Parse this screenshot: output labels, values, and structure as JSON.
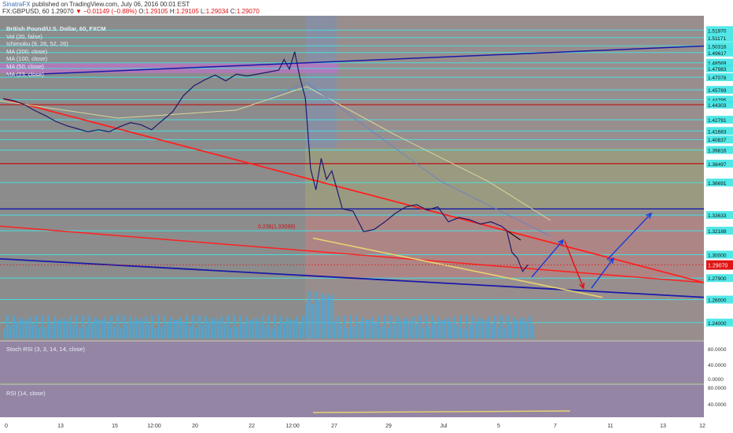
{
  "header": {
    "user": "SinatraFX",
    "published_text": "published on TradingView.com, July 06, 2016 00:01 EST",
    "symbol": "FX:GBPUSD, 60",
    "price": "1.29070",
    "change": "▼ −0.01149 (−0.88%)",
    "o_label": "O:",
    "o": "1.29105",
    "h_label": "H:",
    "h": "1.29105",
    "l_label": "L:",
    "l": "1.29034",
    "c_label": "C:",
    "c": "1.29070"
  },
  "legend": {
    "title": "British Pound/U.S. Dollar, 60, FXCM",
    "items": [
      "Vol (20, false)",
      "Ichimoku (9, 26, 52, 26)",
      "MA (200, close)",
      "MA (100, close)",
      "MA (50, close)",
      "MA (23, close)"
    ]
  },
  "panels": {
    "stoch_label": "Stoch RSI (3, 3, 14, 14, close)",
    "rsi_label": "RSI (14, close)"
  },
  "colors": {
    "background": "#8c8c8c",
    "axis_bg": "#ffffff",
    "trend_red": "#ff2020",
    "trend_blue": "#1a1aa8",
    "support_yellow": "#e8d470",
    "level_cyan": "#3fe6e6",
    "arrow_blue": "#1a3fd8",
    "arrow_red": "#e01515",
    "price_tag": "#e01515"
  },
  "chart_data": {
    "type": "line",
    "title": "British Pound/U.S. Dollar, 60, FXCM",
    "xlabel": "",
    "ylabel": "",
    "x_ticks": [
      "0",
      "13",
      "15",
      "12:00",
      "20",
      "22",
      "12:00",
      "27",
      "29",
      "Jul",
      "5",
      "7",
      "11",
      "13",
      "12"
    ],
    "y_ticks": [
      1.24,
      1.26,
      1.279,
      1.3,
      1.3218,
      1.3363,
      1.3669,
      1.3849,
      1.3981,
      1.4083,
      1.4168,
      1.4279,
      1.443,
      1.4479,
      1.4579,
      1.4707,
      1.4798,
      1.4856,
      1.4962,
      1.5032,
      1.5117,
      1.5197
    ],
    "axis_labels": [
      "1.51970",
      "1.51171",
      "1.50318",
      "1.49617",
      "1.48569",
      "1.47983",
      "1.47078",
      "1.45789",
      "1.44795",
      "1.44303",
      "1.42791",
      "1.41683",
      "1.40837",
      "1.39816",
      "1.38497",
      "1.36691",
      "1.33633",
      "1.32188",
      "1.30000",
      "1.27900",
      "1.26000",
      "1.24000"
    ],
    "last_price": "1.29070",
    "ylim": [
      1.225,
      1.535
    ],
    "price_series": [
      {
        "x": 0,
        "y": 1.449
      },
      {
        "x": 4,
        "y": 1.447
      },
      {
        "x": 8,
        "y": 1.443
      },
      {
        "x": 12,
        "y": 1.437
      },
      {
        "x": 16,
        "y": 1.432
      },
      {
        "x": 20,
        "y": 1.426
      },
      {
        "x": 24,
        "y": 1.422
      },
      {
        "x": 28,
        "y": 1.419
      },
      {
        "x": 32,
        "y": 1.416
      },
      {
        "x": 36,
        "y": 1.418
      },
      {
        "x": 40,
        "y": 1.416
      },
      {
        "x": 44,
        "y": 1.421
      },
      {
        "x": 48,
        "y": 1.425
      },
      {
        "x": 52,
        "y": 1.423
      },
      {
        "x": 56,
        "y": 1.418
      },
      {
        "x": 60,
        "y": 1.427
      },
      {
        "x": 64,
        "y": 1.436
      },
      {
        "x": 68,
        "y": 1.452
      },
      {
        "x": 72,
        "y": 1.462
      },
      {
        "x": 76,
        "y": 1.468
      },
      {
        "x": 80,
        "y": 1.473
      },
      {
        "x": 84,
        "y": 1.467
      },
      {
        "x": 88,
        "y": 1.474
      },
      {
        "x": 92,
        "y": 1.472
      },
      {
        "x": 96,
        "y": 1.474
      },
      {
        "x": 100,
        "y": 1.476
      },
      {
        "x": 104,
        "y": 1.478
      },
      {
        "x": 106,
        "y": 1.489
      },
      {
        "x": 108,
        "y": 1.479
      },
      {
        "x": 110,
        "y": 1.497
      },
      {
        "x": 112,
        "y": 1.47
      },
      {
        "x": 114,
        "y": 1.45
      },
      {
        "x": 116,
        "y": 1.38
      },
      {
        "x": 118,
        "y": 1.36
      },
      {
        "x": 120,
        "y": 1.39
      },
      {
        "x": 122,
        "y": 1.37
      },
      {
        "x": 124,
        "y": 1.378
      },
      {
        "x": 126,
        "y": 1.36
      },
      {
        "x": 128,
        "y": 1.342
      },
      {
        "x": 132,
        "y": 1.34
      },
      {
        "x": 136,
        "y": 1.321
      },
      {
        "x": 140,
        "y": 1.323
      },
      {
        "x": 144,
        "y": 1.33
      },
      {
        "x": 148,
        "y": 1.338
      },
      {
        "x": 152,
        "y": 1.344
      },
      {
        "x": 156,
        "y": 1.346
      },
      {
        "x": 160,
        "y": 1.341
      },
      {
        "x": 164,
        "y": 1.344
      },
      {
        "x": 168,
        "y": 1.33
      },
      {
        "x": 172,
        "y": 1.334
      },
      {
        "x": 176,
        "y": 1.332
      },
      {
        "x": 180,
        "y": 1.328
      },
      {
        "x": 184,
        "y": 1.33
      },
      {
        "x": 188,
        "y": 1.326
      },
      {
        "x": 190,
        "y": 1.322
      },
      {
        "x": 192,
        "y": 1.302
      },
      {
        "x": 194,
        "y": 1.297
      },
      {
        "x": 196,
        "y": 1.285
      },
      {
        "x": 198,
        "y": 1.291
      }
    ],
    "y_scale": "log"
  }
}
